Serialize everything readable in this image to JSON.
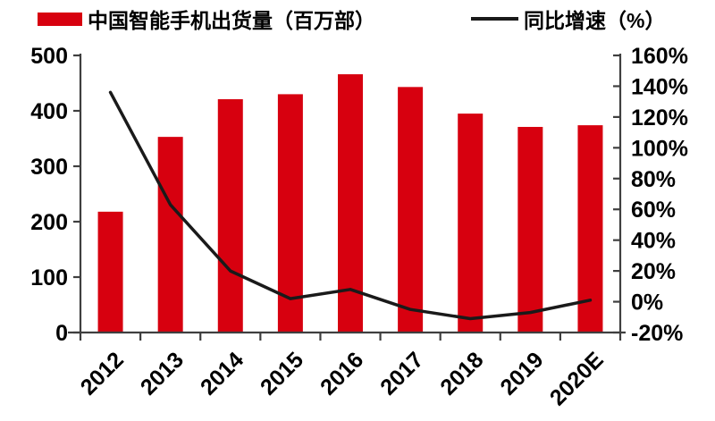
{
  "legend": {
    "bar_label": "中国智能手机出货量（百万部）",
    "line_label": "同比增速（%）"
  },
  "colors": {
    "bar": "#d7000f",
    "line": "#1a1a1a",
    "axis": "#3f3f3f",
    "label": "#000000"
  },
  "chart_data": {
    "type": "bar",
    "subtype": "bar+line dual axis",
    "categories": [
      "2012",
      "2013",
      "2014",
      "2015",
      "2016",
      "2017",
      "2018",
      "2019",
      "2020E"
    ],
    "series": [
      {
        "name": "中国智能手机出货量（百万部）",
        "type": "bar",
        "axis": "left",
        "color": "#d7000f",
        "values": [
          218,
          353,
          421,
          430,
          466,
          443,
          395,
          371,
          374
        ]
      },
      {
        "name": "同比增速（%）",
        "type": "line",
        "axis": "right",
        "color": "#1a1a1a",
        "values": [
          136,
          63,
          20,
          2,
          8,
          -5,
          -11,
          -7,
          1
        ]
      }
    ],
    "left_axis": {
      "min": 0,
      "max": 500,
      "step": 100,
      "tick_labels": [
        "0",
        "100",
        "200",
        "300",
        "400",
        "500"
      ]
    },
    "right_axis": {
      "min": -20,
      "max": 160,
      "step": 20,
      "tick_labels": [
        "-20%",
        "0%",
        "20%",
        "40%",
        "60%",
        "80%",
        "100%",
        "120%",
        "140%",
        "160%"
      ]
    },
    "grid": false,
    "legend_position": "top",
    "x_tick_label_rotation": -45
  }
}
